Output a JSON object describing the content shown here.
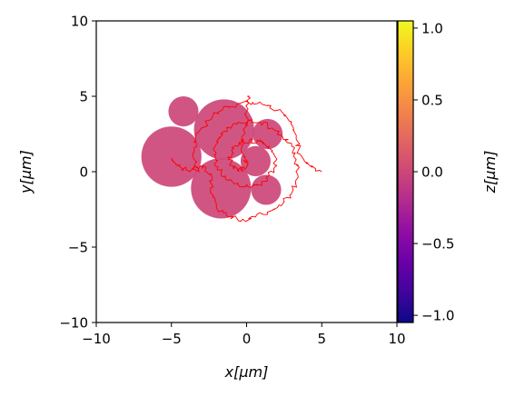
{
  "chart_data": {
    "type": "scatter",
    "xlabel": "x[μm]",
    "ylabel": "y[μm]",
    "colorbar_label": "z[μm]",
    "xlim": [
      -10,
      10
    ],
    "ylim": [
      -10,
      10
    ],
    "xticks": [
      "−10",
      "−5",
      "0",
      "5",
      "10"
    ],
    "yticks": [
      "−10",
      "−5",
      "0",
      "5",
      "10"
    ],
    "xtick_values": [
      -10,
      -5,
      0,
      5,
      10
    ],
    "ytick_values": [
      -10,
      -5,
      0,
      5,
      10
    ],
    "colorbar_range": [
      -1.05,
      1.05
    ],
    "colorbar_ticks": [
      "−1.0",
      "−0.5",
      "0.0",
      "0.5",
      "1.0"
    ],
    "colorbar_tick_values": [
      -1.0,
      -0.5,
      0.0,
      0.5,
      1.0
    ],
    "colormap": "plasma",
    "grid": false,
    "circles": [
      {
        "x": -5.0,
        "y": 1.0,
        "r": 2.0,
        "z": 0.0
      },
      {
        "x": -4.2,
        "y": 4.0,
        "r": 1.0,
        "z": 0.0
      },
      {
        "x": -1.5,
        "y": 2.8,
        "r": 2.0,
        "z": 0.0
      },
      {
        "x": -1.7,
        "y": -1.1,
        "r": 2.0,
        "z": 0.0
      },
      {
        "x": 1.4,
        "y": 2.5,
        "r": 1.0,
        "z": 0.0
      },
      {
        "x": 0.6,
        "y": 0.7,
        "r": 1.0,
        "z": 0.0
      },
      {
        "x": 1.3,
        "y": -1.2,
        "r": 1.0,
        "z": 0.0
      }
    ],
    "trajectory_color": "#ff0000",
    "trajectory": [
      [
        5.0,
        0.0
      ],
      [
        4.2,
        0.4
      ],
      [
        3.5,
        1.2
      ],
      [
        3.3,
        2.3
      ],
      [
        3.0,
        3.3
      ],
      [
        2.3,
        4.0
      ],
      [
        1.4,
        4.4
      ],
      [
        0.4,
        4.6
      ],
      [
        -0.6,
        4.5
      ],
      [
        -1.6,
        4.1
      ],
      [
        -2.5,
        3.4
      ],
      [
        -3.2,
        2.6
      ],
      [
        -3.5,
        1.6
      ],
      [
        -3.4,
        0.6
      ],
      [
        -3.2,
        0.2
      ],
      [
        -2.7,
        0.3
      ],
      [
        -2.3,
        -0.4
      ],
      [
        -2.4,
        -1.4
      ],
      [
        -2.0,
        -2.4
      ],
      [
        -1.2,
        -3.0
      ],
      [
        -0.3,
        -3.2
      ],
      [
        0.6,
        -3.0
      ],
      [
        1.6,
        -2.6
      ],
      [
        2.5,
        -2.0
      ],
      [
        3.1,
        -1.2
      ],
      [
        3.4,
        -0.2
      ],
      [
        3.3,
        0.8
      ],
      [
        3.0,
        1.7
      ],
      [
        2.4,
        2.3
      ],
      [
        1.7,
        2.9
      ],
      [
        0.9,
        3.3
      ],
      [
        0.1,
        3.4
      ],
      [
        -0.8,
        3.2
      ],
      [
        -1.5,
        2.7
      ],
      [
        -2.0,
        2.0
      ],
      [
        -2.1,
        1.1
      ],
      [
        -1.9,
        0.3
      ],
      [
        -1.4,
        -0.3
      ],
      [
        -0.8,
        -0.8
      ],
      [
        -0.1,
        -1.0
      ],
      [
        0.7,
        -0.9
      ],
      [
        1.4,
        -0.5
      ],
      [
        1.8,
        0.2
      ],
      [
        1.9,
        1.0
      ],
      [
        1.5,
        1.7
      ],
      [
        0.9,
        2.0
      ],
      [
        0.2,
        2.1
      ],
      [
        -0.5,
        1.9
      ],
      [
        -1.0,
        1.4
      ],
      [
        -1.2,
        0.8
      ],
      [
        -0.9,
        0.3
      ],
      [
        -0.4,
        0.1
      ],
      [
        0.0,
        0.3
      ],
      [
        -0.1,
        1.0
      ],
      [
        -0.3,
        1.7
      ],
      [
        -0.1,
        2.6
      ],
      [
        0.0,
        3.6
      ],
      [
        0.1,
        4.6
      ],
      [
        0.1,
        5.0
      ]
    ],
    "trajectory_branch": [
      [
        -3.2,
        0.2
      ],
      [
        -4.0,
        0.1
      ],
      [
        -4.6,
        0.4
      ],
      [
        -5.0,
        0.9
      ]
    ]
  }
}
